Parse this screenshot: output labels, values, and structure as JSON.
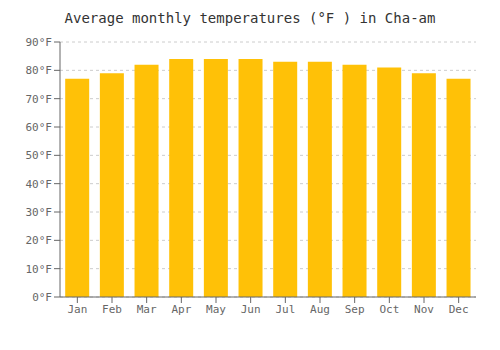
{
  "chart_data": {
    "type": "bar",
    "title": "Average monthly temperatures (°F ) in Cha-am",
    "categories": [
      "Jan",
      "Feb",
      "Mar",
      "Apr",
      "May",
      "Jun",
      "Jul",
      "Aug",
      "Sep",
      "Oct",
      "Nov",
      "Dec"
    ],
    "values": [
      77,
      79,
      82,
      84,
      84,
      84,
      83,
      83,
      82,
      81,
      79,
      77
    ],
    "color": "#FFC107",
    "ylim": [
      0,
      90
    ],
    "yticks": [
      {
        "value": 0,
        "label": "0°F"
      },
      {
        "value": 10,
        "label": "10°F"
      },
      {
        "value": 20,
        "label": "20°F"
      },
      {
        "value": 30,
        "label": "30°F"
      },
      {
        "value": 40,
        "label": "40°F"
      },
      {
        "value": 50,
        "label": "50°F"
      },
      {
        "value": 60,
        "label": "60°F"
      },
      {
        "value": 70,
        "label": "70°F"
      },
      {
        "value": 80,
        "label": "80°F"
      },
      {
        "value": 90,
        "label": "90°F"
      }
    ],
    "grid": true
  }
}
